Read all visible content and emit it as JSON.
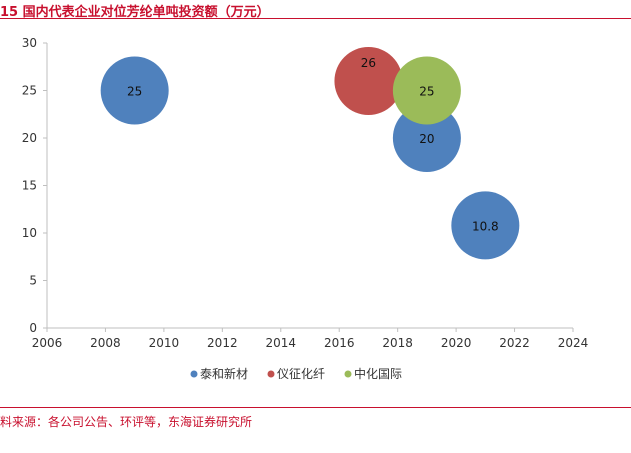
{
  "header": {
    "title": "15   国内代表企业对位芳纶单吨投资额（万元）"
  },
  "footer": {
    "source": "料来源：各公司公告、环评等，东海证券研究所"
  },
  "chart_data": {
    "type": "scatter",
    "subtype": "bubble",
    "title": "国内代表企业对位芳纶单吨投资额（万元）",
    "xlabel": "",
    "ylabel": "",
    "xlim": [
      2006,
      2024
    ],
    "ylim": [
      0,
      30
    ],
    "xticks": [
      2006,
      2008,
      2010,
      2012,
      2014,
      2016,
      2018,
      2020,
      2022,
      2024
    ],
    "yticks": [
      0,
      5,
      10,
      15,
      20,
      25,
      30
    ],
    "grid": false,
    "legend_position": "bottom",
    "series": [
      {
        "name": "泰和新材",
        "color": "#4f81bd",
        "points": [
          {
            "x": 2009,
            "y": 25,
            "label": "25"
          },
          {
            "x": 2019,
            "y": 20,
            "label": "20"
          },
          {
            "x": 2021,
            "y": 10.8,
            "label": "10.8"
          }
        ]
      },
      {
        "name": "仪征化纤",
        "color": "#c0504d",
        "points": [
          {
            "x": 2017,
            "y": 26,
            "label": "26"
          }
        ]
      },
      {
        "name": "中化国际",
        "color": "#9bbb59",
        "points": [
          {
            "x": 2019,
            "y": 25,
            "label": "25"
          }
        ]
      }
    ]
  }
}
